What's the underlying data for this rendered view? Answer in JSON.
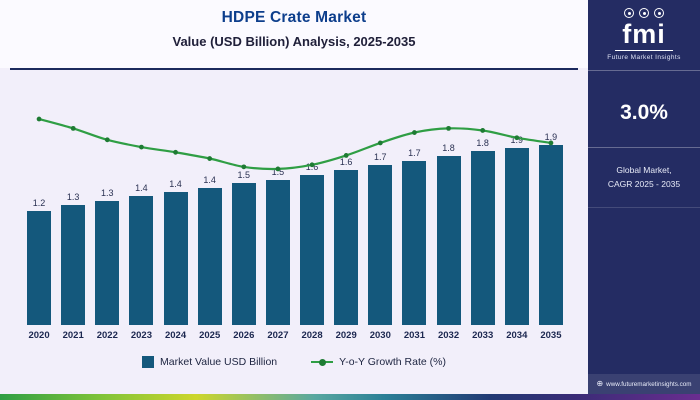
{
  "header": {
    "title": "HDPE Crate Market",
    "subtitle": "Value (USD Billion) Analysis, 2025-2035"
  },
  "chart_data": {
    "type": "bar",
    "title": "HDPE Crate Market",
    "subtitle": "Value (USD Billion) Analysis, 2025-2035",
    "categories": [
      "2020",
      "2021",
      "2022",
      "2023",
      "2024",
      "2025",
      "2026",
      "2027",
      "2028",
      "2029",
      "2030",
      "2031",
      "2032",
      "2033",
      "2034",
      "2035"
    ],
    "series": [
      {
        "name": "Market Value USD Billion",
        "type": "bar",
        "values": [
          1.2,
          1.3,
          1.3,
          1.4,
          1.4,
          1.4,
          1.5,
          1.5,
          1.6,
          1.6,
          1.7,
          1.7,
          1.8,
          1.8,
          1.9,
          1.9
        ],
        "values_exact": [
          1.2,
          1.26,
          1.31,
          1.36,
          1.4,
          1.44,
          1.49,
          1.53,
          1.58,
          1.63,
          1.68,
          1.73,
          1.78,
          1.83,
          1.86,
          1.9
        ]
      },
      {
        "name": "Y-o-Y Growth Rate (%)",
        "type": "line",
        "values_estimated_pct": [
          8.2,
          7.3,
          6.2,
          5.5,
          5.0,
          4.4,
          3.6,
          3.4,
          3.8,
          4.7,
          5.9,
          6.9,
          7.3,
          7.1,
          6.4,
          5.9
        ]
      }
    ],
    "xlabel": "",
    "ylabel": "",
    "ylim": [
      0,
      2.2
    ],
    "grid": false,
    "legend_position": "bottom",
    "bar_color": "#14587c",
    "line_color": "#2f9e44",
    "marker_color": "#1e7b33",
    "value_label_decimals": 1
  },
  "legend": {
    "bar_label": "Market Value USD Billion",
    "line_label": "Y-o-Y Growth Rate (%)"
  },
  "sidebar": {
    "logo_text": "fmi",
    "logo_subtext": "Future Market Insights",
    "cagr_value": "3.0%",
    "caption_line1": "Global Market,",
    "caption_line2": "CAGR 2025 - 2035",
    "website": "www.futuremarketinsights.com"
  },
  "colors": {
    "sidebar_bg": "#242c63",
    "title_blue": "#0d3e8c",
    "chart_bg": "#f2effa",
    "bar": "#14587c",
    "line": "#2f9e44"
  }
}
